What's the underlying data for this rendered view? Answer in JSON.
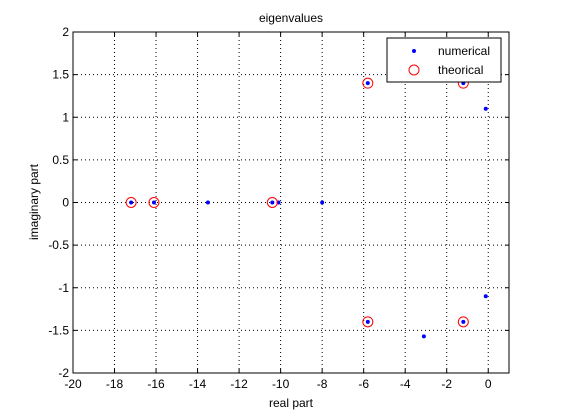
{
  "chart_data": {
    "type": "scatter",
    "title": "eigenvalues",
    "xlabel": "real part",
    "ylabel": "imaginary part",
    "xlim": [
      -20,
      1
    ],
    "ylim": [
      -2,
      2
    ],
    "xticks": [
      -20,
      -18,
      -16,
      -14,
      -12,
      -10,
      -8,
      -6,
      -4,
      -2,
      0
    ],
    "xtick_labels": [
      "-20",
      "-18",
      "-16",
      "-14",
      "-12",
      "-10",
      "-8",
      "-6",
      "-4",
      "-2",
      "0"
    ],
    "yticks": [
      -2,
      -1.5,
      -1,
      -0.5,
      0,
      0.5,
      1,
      1.5,
      2
    ],
    "ytick_labels": [
      "-2",
      "-1.5",
      "-1",
      "-0.5",
      "0",
      "0.5",
      "1",
      "1.5",
      "2"
    ],
    "grid": true,
    "grid_style": "dotted",
    "legend_position": "top-right",
    "series": [
      {
        "name": "numerical",
        "marker": "point",
        "color": "#0000ff",
        "points": [
          [
            -17.2,
            0
          ],
          [
            -16.1,
            0
          ],
          [
            -13.5,
            0
          ],
          [
            -10.4,
            0
          ],
          [
            -10.1,
            0
          ],
          [
            -8.0,
            0
          ],
          [
            -5.8,
            1.4
          ],
          [
            -5.8,
            -1.4
          ],
          [
            -1.2,
            1.4
          ],
          [
            -1.2,
            -1.4
          ],
          [
            -3.1,
            -1.57
          ],
          [
            -0.12,
            1.1
          ],
          [
            -0.12,
            -1.1
          ]
        ]
      },
      {
        "name": "theorical",
        "marker": "circle",
        "color": "#ff0000",
        "points": [
          [
            -17.2,
            0
          ],
          [
            -16.1,
            0
          ],
          [
            -10.4,
            0
          ],
          [
            -5.8,
            1.4
          ],
          [
            -5.8,
            -1.4
          ],
          [
            -1.2,
            1.4
          ],
          [
            -1.2,
            -1.4
          ]
        ]
      }
    ]
  }
}
